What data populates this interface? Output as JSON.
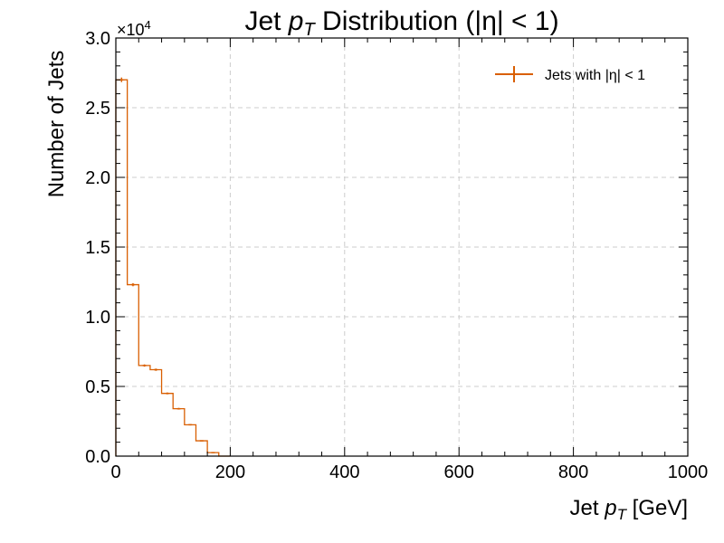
{
  "chart_data": {
    "type": "histogram",
    "title": "Jet pT Distribution (|η| < 1)",
    "title_parts": {
      "prefix": "Jet ",
      "var": "p",
      "sub": "T",
      "suffix": " Distribution (|η| < 1)"
    },
    "xlabel": "Jet pT [GeV]",
    "xlabel_parts": {
      "prefix": "Jet ",
      "var": "p",
      "sub": "T",
      "suffix": " [GeV]"
    },
    "ylabel": "Number of Jets",
    "xlim": [
      0,
      1000
    ],
    "ylim": [
      0,
      30000
    ],
    "x_ticks": [
      0,
      200,
      400,
      600,
      800,
      1000
    ],
    "x_tick_labels": [
      "0",
      "200",
      "400",
      "600",
      "800",
      "1000"
    ],
    "y_ticks": [
      0,
      5000,
      10000,
      15000,
      20000,
      25000,
      30000
    ],
    "y_tick_labels": [
      "0.0",
      "0.5",
      "1.0",
      "1.5",
      "2.0",
      "2.5",
      "3.0"
    ],
    "y_multiplier_label": "×10",
    "y_multiplier_exp": "4",
    "grid": true,
    "legend_position": "top-right",
    "series": [
      {
        "name": "Jets with |η| < 1",
        "color": "#d95f02",
        "bin_edges": [
          0,
          20,
          40,
          60,
          80,
          100,
          120,
          140,
          160,
          180,
          200
        ],
        "values": [
          27000,
          12300,
          6500,
          6200,
          4500,
          3400,
          2250,
          1100,
          250,
          0
        ]
      }
    ]
  }
}
